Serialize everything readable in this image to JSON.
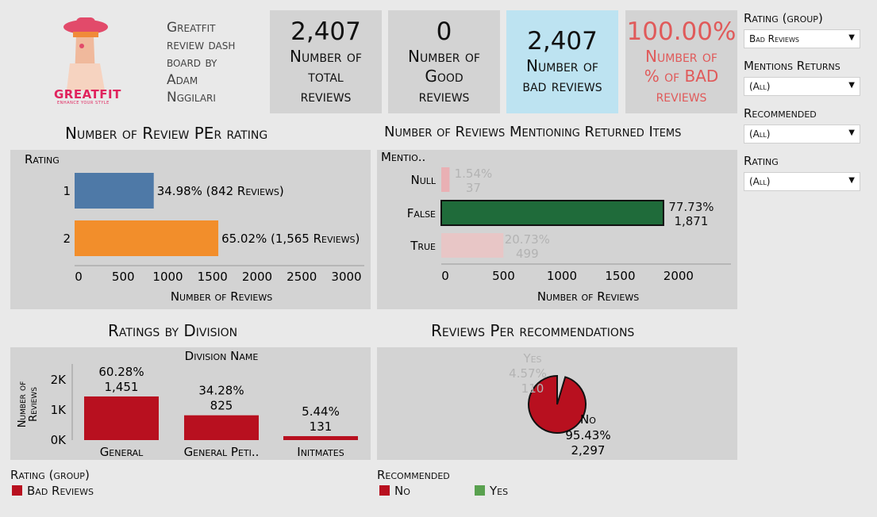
{
  "brand": {
    "logo_text": "GREATFIT",
    "tagline": "ENHANCE YOUR STYLE",
    "title_lines": [
      "Greatfit",
      "review dash",
      "board by",
      "Adam",
      "Nggilari"
    ]
  },
  "kpis": [
    {
      "value": "2,407",
      "label_lines": [
        "Number of",
        "total",
        "reviews"
      ],
      "bg": "#d3d3d3",
      "color": "#111111"
    },
    {
      "value": "0",
      "label_lines": [
        "Number of",
        "Good",
        "reviews"
      ],
      "bg": "#d3d3d3",
      "color": "#111111"
    },
    {
      "value": "2,407",
      "label_lines": [
        "Number of",
        "bad reviews"
      ],
      "bg": "#bde3f1",
      "color": "#111111"
    },
    {
      "value": "100.00%",
      "label_lines": [
        "Number of",
        "% of BAD",
        "reviews"
      ],
      "bg": "#d3d3d3",
      "color": "#e05a5a"
    }
  ],
  "filters": [
    {
      "label": "Rating (group)",
      "value": "Bad Reviews"
    },
    {
      "label": "Mentions Returns",
      "value": "(All)"
    },
    {
      "label": "Recommended",
      "value": "(All)"
    },
    {
      "label": "Rating",
      "value": "(All)"
    }
  ],
  "titles": {
    "rating": "Number of Review PEr rating",
    "returns": "Number of Reviews Mentioning Returned Items",
    "division": "Ratings by Division",
    "recommend": "Reviews Per recommendations"
  },
  "legends": {
    "rating_group": {
      "title": "Rating (group)",
      "items": [
        {
          "label": "Bad Reviews",
          "color": "#b8101f"
        }
      ]
    },
    "recommended": {
      "title": "Recommended",
      "items": [
        {
          "label": "No",
          "color": "#b8101f"
        },
        {
          "label": "Yes",
          "color": "#59a14f"
        }
      ]
    }
  },
  "chart_data": [
    {
      "type": "bar",
      "orientation": "horizontal",
      "title": "Number of Review PEr rating",
      "category_header": "Rating",
      "categories": [
        "1",
        "2"
      ],
      "values": [
        842,
        1565
      ],
      "data_labels": [
        "34.98% (842 Reviews)",
        "65.02% (1,565 Reviews)"
      ],
      "colors": [
        "#4e79a7",
        "#f28e2b"
      ],
      "xlabel": "Number of Reviews",
      "xlim": [
        0,
        3200
      ],
      "ticks": [
        0,
        500,
        1000,
        1500,
        2000,
        2500,
        3000
      ],
      "tick_labels": [
        "0",
        "500",
        "1000",
        "1500",
        "2000",
        "2500",
        "3000"
      ]
    },
    {
      "type": "bar",
      "orientation": "horizontal",
      "title": "Number of Reviews Mentioning Returned Items",
      "category_header": "Mentio..",
      "categories": [
        "Null",
        "False",
        "True"
      ],
      "values": [
        37,
        1871,
        499
      ],
      "pct_labels": [
        "1.54%",
        "77.73%",
        "20.73%"
      ],
      "count_labels": [
        "37",
        "1,871",
        "499"
      ],
      "colors": [
        "#e9b0b4",
        "#1f6b3a",
        "#e8c6c6"
      ],
      "highlighted": [
        false,
        true,
        false
      ],
      "xlabel": "Number of Reviews",
      "xlim": [
        0,
        2450
      ],
      "ticks": [
        0,
        500,
        1000,
        1500,
        2000
      ],
      "tick_labels": [
        "0",
        "500",
        "1000",
        "1500",
        "2000"
      ]
    },
    {
      "type": "bar",
      "orientation": "vertical",
      "title": "Ratings by Division",
      "category_header": "Division Name",
      "categories": [
        "General",
        "General Peti..",
        "Initmates"
      ],
      "values": [
        1451,
        825,
        131
      ],
      "pct_labels": [
        "60.28%",
        "34.28%",
        "5.44%"
      ],
      "count_labels": [
        "1,451",
        "825",
        "131"
      ],
      "color": "#b8101f",
      "ylabel": "Number of Reviews",
      "ylim": [
        0,
        2400
      ],
      "ticks": [
        0,
        1000,
        2000
      ],
      "tick_labels": [
        "0K",
        "1K",
        "2K"
      ]
    },
    {
      "type": "pie",
      "title": "Reviews Per recommendations",
      "slices": [
        {
          "name": "No",
          "value": 2297,
          "pct": "95.43%",
          "count": "2,297",
          "color": "#b8101f"
        },
        {
          "name": "Yes",
          "value": 110,
          "pct": "4.57%",
          "count": "110",
          "color": "#59a14f"
        }
      ]
    }
  ]
}
